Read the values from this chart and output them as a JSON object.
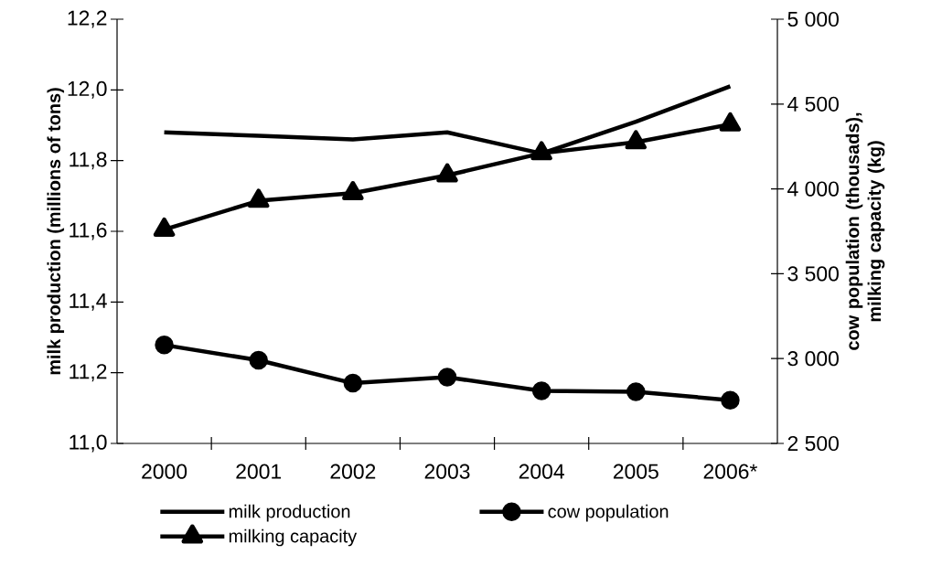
{
  "chart_data": {
    "type": "line",
    "ylabel": "milk production (millions of tons)",
    "y2label": "cow population (thousads), milking capacity (kg)",
    "categories": [
      "2000",
      "2001",
      "2002",
      "2003",
      "2004",
      "2005",
      "2006*"
    ],
    "series": [
      {
        "name": "milk production",
        "color": "#000000",
        "marker": "none",
        "values": [
          11.88,
          11.87,
          11.86,
          11.88,
          11.82,
          11.91,
          12.01
        ]
      },
      {
        "name": "cow population",
        "color": "#000000",
        "marker": "circle",
        "axis": "y2",
        "values": [
          3080,
          2990,
          2855,
          2890,
          2810,
          2805,
          2755
        ]
      },
      {
        "name": "milking capacity",
        "color": "#000000",
        "marker": "triangle",
        "axis": "y2",
        "values": [
          3760,
          3930,
          3975,
          4080,
          4210,
          4275,
          4380
        ]
      }
    ],
    "ylim": [
      11.0,
      12.2
    ],
    "yticks": [
      {
        "value": 11.0,
        "label": "11,0"
      },
      {
        "value": 11.2,
        "label": "11,2"
      },
      {
        "value": 11.4,
        "label": "11,4"
      },
      {
        "value": 11.6,
        "label": "11,6"
      },
      {
        "value": 11.8,
        "label": "11,8"
      },
      {
        "value": 12.0,
        "label": "12,0"
      },
      {
        "value": 12.2,
        "label": "12,2"
      }
    ],
    "y2lim": [
      2500,
      5000
    ],
    "y2ticks": [
      {
        "value": 2500,
        "label": "2 500"
      },
      {
        "value": 3000,
        "label": "3 000"
      },
      {
        "value": 3500,
        "label": "3 500"
      },
      {
        "value": 4000,
        "label": "4 000"
      },
      {
        "value": 4500,
        "label": "4 500"
      },
      {
        "value": 5000,
        "label": "5 000"
      }
    ],
    "line_style": "solid",
    "legend": "bottom"
  }
}
